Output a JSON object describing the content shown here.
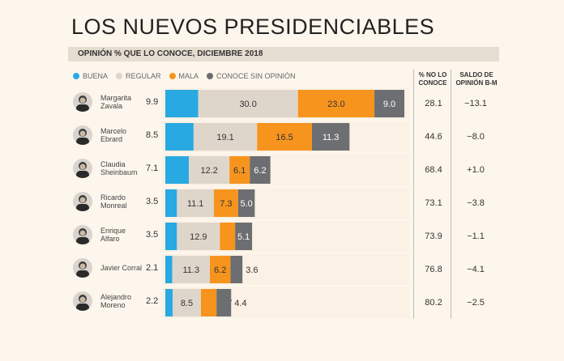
{
  "title": "LOS NUEVOS PRESIDENCIABLES",
  "subtitle": "OPINIÓN % QUE LO CONOCE, DICIEMBRE 2018",
  "columns": {
    "no_conoce": "% NO LO CONOCE",
    "saldo": "SALDO DE OPINIÓN B-M"
  },
  "colors": {
    "buena": "#29a9e1",
    "regular": "#dfd6cb",
    "mala": "#f7941d",
    "sin_opinion": "#6d6e71"
  },
  "chart_data": {
    "type": "bar",
    "stacked": true,
    "orientation": "horizontal",
    "legend": [
      "BUENA",
      "REGULAR",
      "MALA",
      "CONOCE SIN OPINIÓN"
    ],
    "categories": [
      "Margarita Zavala",
      "Marcelo Ebrard",
      "Claudia Sheinbaum",
      "Ricardo Monreal",
      "Enrique Alfaro",
      "Javier Corral",
      "Alejandro Moreno"
    ],
    "series": [
      {
        "name": "BUENA",
        "values": [
          9.9,
          8.5,
          7.1,
          3.5,
          3.5,
          2.1,
          2.2
        ]
      },
      {
        "name": "REGULAR",
        "values": [
          30.0,
          19.1,
          12.2,
          11.1,
          12.9,
          11.3,
          8.5
        ]
      },
      {
        "name": "MALA",
        "values": [
          23.0,
          16.5,
          6.1,
          7.3,
          4.6,
          6.2,
          4.7
        ]
      },
      {
        "name": "CONOCE SIN OPINIÓN",
        "values": [
          9.0,
          11.3,
          6.2,
          5.0,
          5.1,
          3.6,
          4.4
        ]
      }
    ],
    "no_lo_conoce": [
      28.1,
      44.6,
      68.4,
      73.1,
      73.9,
      76.8,
      80.2
    ],
    "saldo": [
      "−13.1",
      "−8.0",
      "+1.0",
      "−3.8",
      "−1.1",
      "−4.1",
      "−2.5"
    ]
  },
  "rows": [
    {
      "name_1": "Margarita",
      "name_2": "Zavala",
      "buena": "9.9",
      "regular": "30.0",
      "mala": "23.0",
      "sin": "9.0",
      "noconoce": "28.1",
      "saldo": "−13.1"
    },
    {
      "name_1": "Marcelo",
      "name_2": "Ebrard",
      "buena": "8.5",
      "regular": "19.1",
      "mala": "16.5",
      "sin": "11.3",
      "noconoce": "44.6",
      "saldo": "−8.0"
    },
    {
      "name_1": "Claudia",
      "name_2": "Sheinbaum",
      "buena": "7.1",
      "regular": "12.2",
      "mala": "6.1",
      "sin": "6.2",
      "noconoce": "68.4",
      "saldo": "+1.0"
    },
    {
      "name_1": "Ricardo",
      "name_2": "Monreal",
      "buena": "3.5",
      "regular": "11.1",
      "mala": "7.3",
      "sin": "5.0",
      "noconoce": "73.1",
      "saldo": "−3.8"
    },
    {
      "name_1": "Enrique",
      "name_2": "Alfaro",
      "buena": "3.5",
      "regular": "12.9",
      "mala": "4.6",
      "sin": "5.1",
      "noconoce": "73.9",
      "saldo": "−1.1"
    },
    {
      "name_1": "Javier Corral",
      "name_2": "",
      "buena": "2.1",
      "regular": "11.3",
      "mala": "6.2",
      "sin": "3.6",
      "noconoce": "76.8",
      "saldo": "−4.1"
    },
    {
      "name_1": "Alejandro",
      "name_2": "Moreno",
      "buena": "2.2",
      "regular": "8.5",
      "mala": "4.7",
      "sin": "4.4",
      "noconoce": "80.2",
      "saldo": "−2.5"
    }
  ]
}
